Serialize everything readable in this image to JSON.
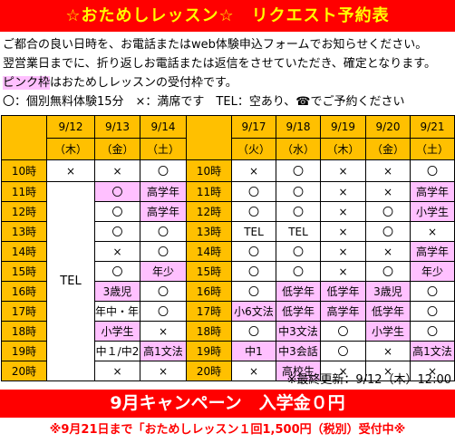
{
  "header": {
    "title": "☆おためしレッスン☆　リクエスト予約表"
  },
  "info": {
    "line1": "ご都合の良い日時を、お電話またはweb体験申込フォームでお知らせください。",
    "line2": "翌営業日までに、折り返しお電話または返信をさせていただき、確定となります。",
    "line3_highlight": "ピンク枠",
    "line3_rest": "はおためしレッスンの受付枠です。",
    "line4": "〇：個別無料体験15分　×：満席です　TEL：空あり、☎でご予約ください"
  },
  "colors": {
    "header_bg": "#ff0000",
    "header_text": "#ffff00",
    "time_bg": "#ffc000",
    "pink_slot": "#ffc0ff"
  },
  "week1": {
    "dates": [
      "9/12",
      "9/13",
      "9/14"
    ],
    "days": [
      "（木）",
      "（金）",
      "（土）"
    ]
  },
  "week2": {
    "dates": [
      "9/17",
      "9/18",
      "9/19",
      "9/20",
      "9/21"
    ],
    "days": [
      "（火）",
      "（水）",
      "（木）",
      "（金）",
      "（土）"
    ]
  },
  "times": [
    "10時",
    "11時",
    "12時",
    "13時",
    "14時",
    "15時",
    "16時",
    "17時",
    "18時",
    "19時",
    "20時"
  ],
  "slots": {
    "tel": "TEL",
    "w1": [
      [
        "×",
        "×",
        "〇"
      ],
      [
        "",
        "〇",
        "高学年"
      ],
      [
        "",
        "〇",
        "高学年"
      ],
      [
        "",
        "〇",
        "〇"
      ],
      [
        "",
        "×",
        "〇"
      ],
      [
        "",
        "〇",
        "年少"
      ],
      [
        "",
        "3歳児",
        "〇"
      ],
      [
        "",
        "年中・年長",
        "〇"
      ],
      [
        "",
        "小学生",
        "×"
      ],
      [
        "",
        "中１/中2",
        "高1文法"
      ],
      [
        "",
        "×",
        "×"
      ]
    ],
    "w2": [
      [
        "×",
        "〇",
        "×",
        "×",
        "〇"
      ],
      [
        "〇",
        "〇",
        "×",
        "×",
        "高学年"
      ],
      [
        "〇",
        "〇",
        "×",
        "〇",
        "小学生"
      ],
      [
        "TEL",
        "TEL",
        "×",
        "〇",
        "×"
      ],
      [
        "〇",
        "〇",
        "×",
        "×",
        "高学年"
      ],
      [
        "〇",
        "〇",
        "×",
        "〇",
        "年少"
      ],
      [
        "〇",
        "低学年",
        "低学年",
        "3歳児",
        "〇"
      ],
      [
        "小6文法",
        "低学年",
        "高学年",
        "低学年",
        "〇"
      ],
      [
        "〇",
        "中3文法",
        "〇",
        "小学生",
        "〇"
      ],
      [
        "中1",
        "中3会話",
        "〇",
        "×",
        "高1文法"
      ],
      [
        "×",
        "高校生",
        "×",
        "×",
        "×"
      ]
    ]
  },
  "footer": {
    "updated": "※最終更新：9/12（木）12:00",
    "campaign": "9月キャンペーン　入学金０円",
    "note": "※9月21日まで「おためしレッスン１回1,500円（税別）受付中※"
  }
}
